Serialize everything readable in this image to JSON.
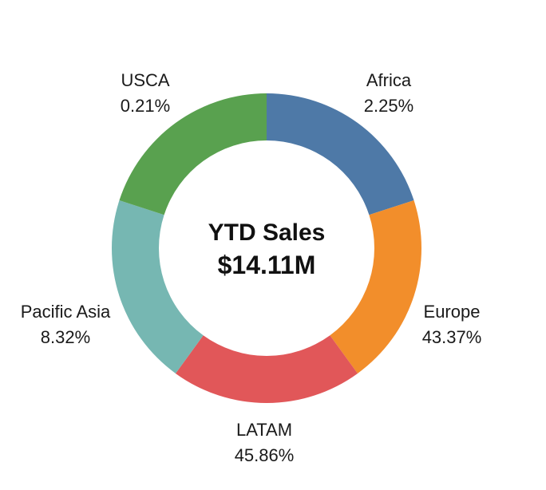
{
  "chart_data": {
    "type": "pie",
    "variant": "donut",
    "center_title": "YTD Sales",
    "center_value": "$14.11M",
    "legend": "none",
    "slices": [
      {
        "label": "Africa",
        "percent_label": "2.25%",
        "value": 2.25,
        "color": "#4e79a7"
      },
      {
        "label": "Europe",
        "percent_label": "43.37%",
        "value": 43.37,
        "color": "#f28e2b"
      },
      {
        "label": "LATAM",
        "percent_label": "45.86%",
        "value": 45.86,
        "color": "#e15759"
      },
      {
        "label": "Pacific Asia",
        "percent_label": "8.32%",
        "value": 8.32,
        "color": "#76b7b2"
      },
      {
        "label": "USCA",
        "percent_label": "0.21%",
        "value": 0.21,
        "color": "#59a14f"
      }
    ]
  }
}
